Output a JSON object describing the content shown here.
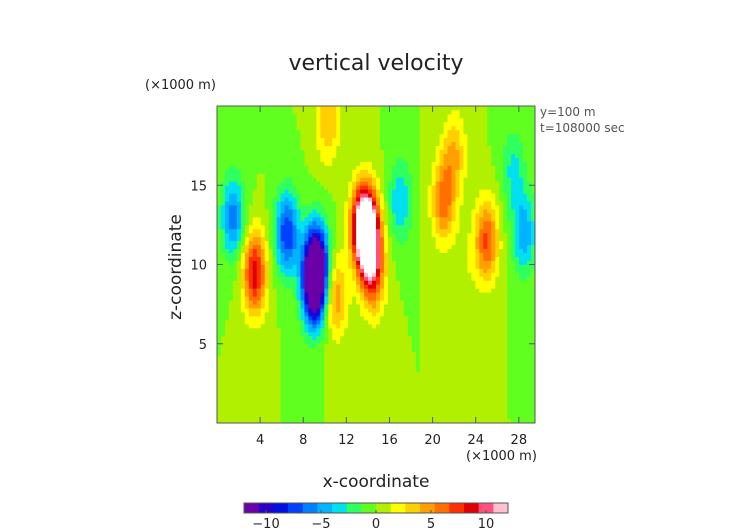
{
  "chart_data": {
    "type": "heatmap",
    "title": "vertical velocity",
    "xlabel": "x-coordinate",
    "ylabel": "z-coordinate",
    "x_unit": "(×1000 m)",
    "y_unit": "(×1000 m)",
    "annotations": [
      "y=100 m",
      "t=108000 sec"
    ],
    "xlim": [
      0,
      29.5
    ],
    "ylim": [
      0,
      20
    ],
    "x_ticks": [
      4,
      8,
      12,
      16,
      20,
      24,
      28
    ],
    "y_ticks": [
      5,
      10,
      15
    ],
    "colorbar": {
      "range": [
        -12,
        12
      ],
      "ticks": [
        -10,
        -5,
        0,
        5,
        10
      ],
      "tick_labels": [
        "−10",
        "−5",
        "0",
        "5",
        "10"
      ]
    },
    "features": [
      {
        "x": 1.5,
        "z": 13.0,
        "value": -6
      },
      {
        "x": 3.5,
        "z": 9.5,
        "value": 9
      },
      {
        "x": 6.5,
        "z": 12.0,
        "value": -8
      },
      {
        "x": 9.0,
        "z": 8.5,
        "value": -10
      },
      {
        "x": 9.2,
        "z": 10.0,
        "value": -13
      },
      {
        "x": 10.3,
        "z": 19.0,
        "value": 4
      },
      {
        "x": 11.0,
        "z": 8.0,
        "value": 5
      },
      {
        "x": 13.5,
        "z": 12.5,
        "value": 10
      },
      {
        "x": 14.0,
        "z": 12.0,
        "value": 12
      },
      {
        "x": 14.5,
        "z": 9.5,
        "value": 7
      },
      {
        "x": 17.0,
        "z": 14.0,
        "value": -4
      },
      {
        "x": 21.0,
        "z": 14.0,
        "value": 6
      },
      {
        "x": 23.0,
        "z": 10.0,
        "value": 1
      },
      {
        "x": 25.0,
        "z": 11.5,
        "value": 7
      },
      {
        "x": 22.0,
        "z": 17.0,
        "value": 4
      },
      {
        "x": 28.5,
        "z": 12.0,
        "value": -5
      },
      {
        "x": 27.5,
        "z": 16.0,
        "value": -3
      }
    ],
    "grid": false
  },
  "colors": {
    "scale": [
      "#6a00a8",
      "#2a00c8",
      "#0010e0",
      "#0040ff",
      "#0080ff",
      "#00b4ff",
      "#00e0f0",
      "#30ff60",
      "#60ff20",
      "#b0f000",
      "#ffff00",
      "#ffd000",
      "#ffa000",
      "#ff7000",
      "#ff3000",
      "#e00000",
      "#ff5080",
      "#ffc0d0"
    ]
  }
}
